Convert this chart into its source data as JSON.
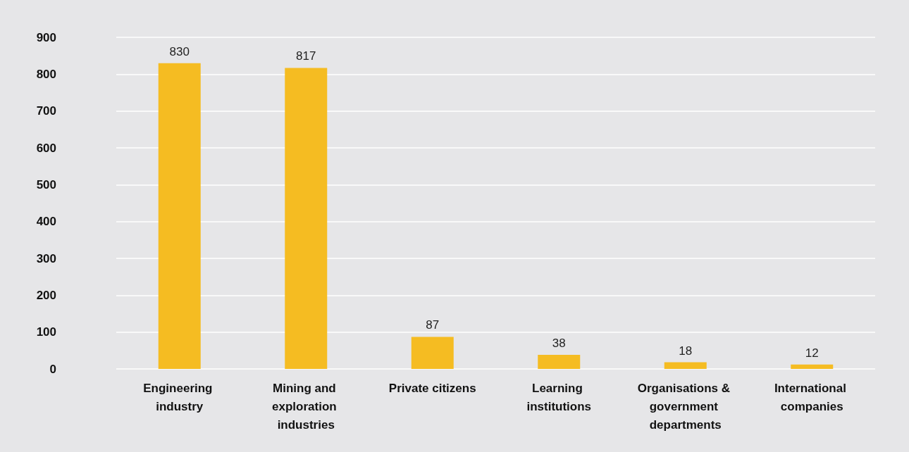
{
  "chart_data": {
    "type": "bar",
    "categories": [
      "Engineering industry",
      "Mining and exploration industries",
      "Private citizens",
      "Learning institutions",
      "Organisations & government departments",
      "International companies"
    ],
    "values": [
      830,
      817,
      87,
      38,
      18,
      12
    ],
    "color": "#f5bc22",
    "ylim": [
      0,
      900
    ],
    "yticks": [
      0,
      100,
      200,
      300,
      400,
      500,
      600,
      700,
      800,
      900
    ],
    "grid": "y",
    "data_labels": true
  }
}
